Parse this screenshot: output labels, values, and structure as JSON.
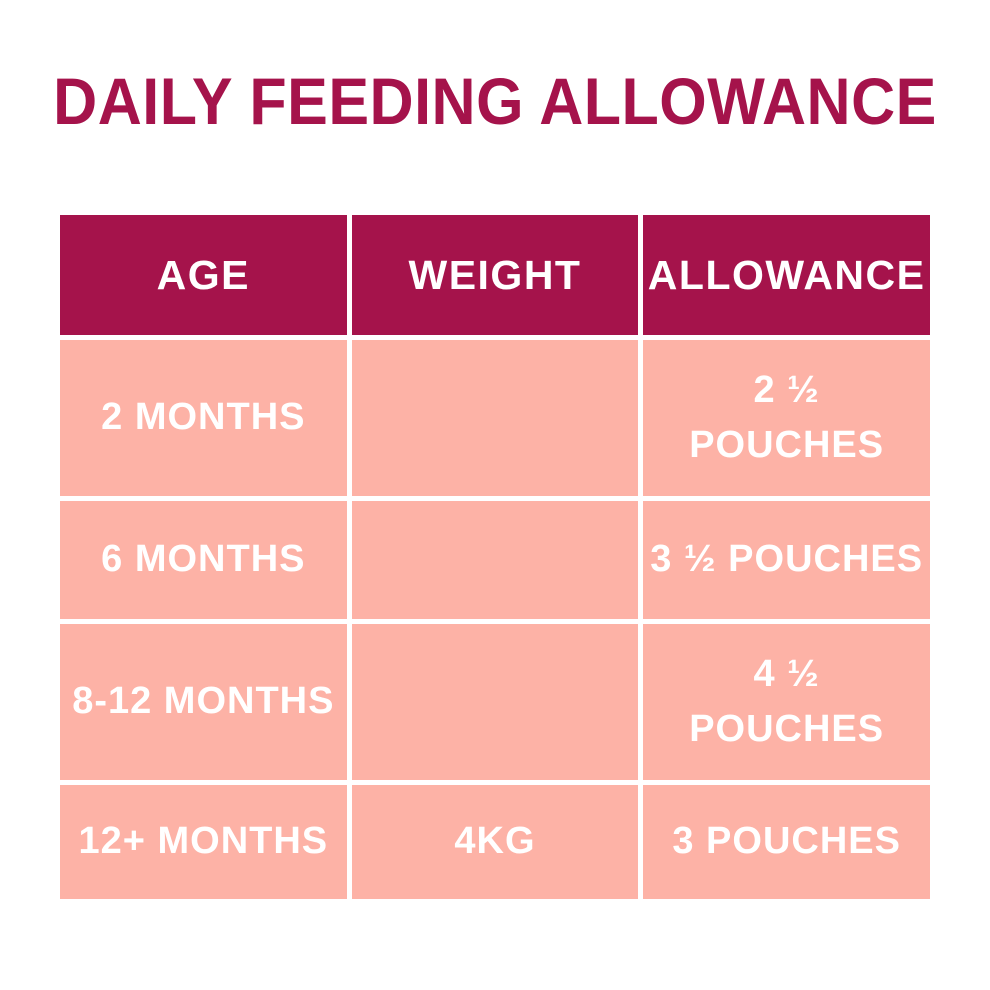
{
  "title": "DAILY FEEDING ALLOWANCE",
  "colors": {
    "accent": "#a5134b",
    "row_pink": "#fdb2a6",
    "title_text": "#a5134b",
    "cell_text": "#ffffff",
    "background": "#ffffff"
  },
  "table": {
    "headers": [
      "AGE",
      "WEIGHT",
      "ALLOWANCE"
    ],
    "rows": [
      {
        "age": "2 MONTHS",
        "weight": "",
        "allowance": "2 ½\nPOUCHES"
      },
      {
        "age": "6 MONTHS",
        "weight": "",
        "allowance": "3 ½ POUCHES"
      },
      {
        "age": "8-12 MONTHS",
        "weight": "",
        "allowance": "4 ½\nPOUCHES"
      },
      {
        "age": "12+ MONTHS",
        "weight": "4KG",
        "allowance": "3 POUCHES"
      }
    ]
  },
  "chart_data": {
    "type": "table",
    "title": "DAILY FEEDING ALLOWANCE",
    "columns": [
      "AGE",
      "WEIGHT",
      "ALLOWANCE"
    ],
    "rows": [
      [
        "2 MONTHS",
        "",
        "2 ½ POUCHES"
      ],
      [
        "6 MONTHS",
        "",
        "3 ½ POUCHES"
      ],
      [
        "8-12 MONTHS",
        "",
        "4 ½ POUCHES"
      ],
      [
        "12+ MONTHS",
        "4KG",
        "3 POUCHES"
      ]
    ]
  }
}
